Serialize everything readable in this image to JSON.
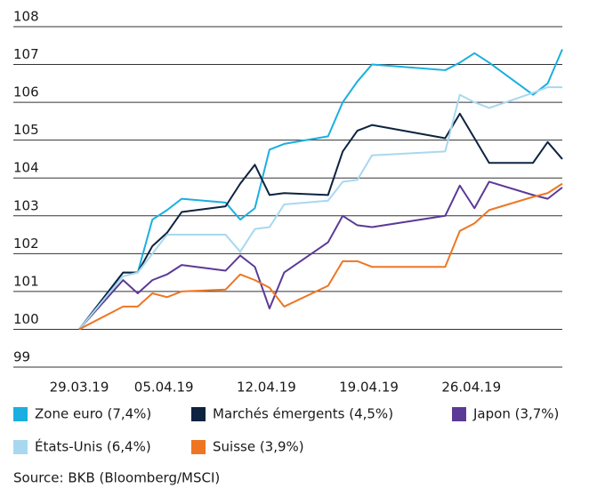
{
  "chart_data": {
    "type": "line",
    "x": [
      "29.03.19",
      "01.04.19",
      "02.04.19",
      "03.04.19",
      "04.04.19",
      "05.04.19",
      "08.04.19",
      "09.04.19",
      "10.04.19",
      "11.04.19",
      "12.04.19",
      "15.04.19",
      "16.04.19",
      "17.04.19",
      "18.04.19",
      "23.04.19",
      "24.04.19",
      "25.04.19",
      "26.04.19",
      "29.04.19",
      "30.04.19",
      "01.05.19"
    ],
    "xticks": [
      "29.03.19",
      "05.04.19",
      "12.04.19",
      "19.04.19",
      "26.04.19"
    ],
    "ylim": [
      99,
      108
    ],
    "yticks": [
      99,
      100,
      101,
      102,
      103,
      104,
      105,
      106,
      107,
      108
    ],
    "grid": true,
    "series": [
      {
        "name": "Zone euro (7,4%)",
        "color": "#1aafe0",
        "values": [
          100,
          101.5,
          101.5,
          102.9,
          103.15,
          103.45,
          103.35,
          102.9,
          103.2,
          104.75,
          104.9,
          105.1,
          106.0,
          106.55,
          107.0,
          106.85,
          107.05,
          107.3,
          107.05,
          106.2,
          106.5,
          107.4
        ]
      },
      {
        "name": "Marchés émergents (4,5%)",
        "color": "#0d2340",
        "values": [
          100,
          101.5,
          101.5,
          102.2,
          102.55,
          103.1,
          103.25,
          103.85,
          104.35,
          103.55,
          103.6,
          103.55,
          104.7,
          105.25,
          105.4,
          105.05,
          105.7,
          105.05,
          104.4,
          104.4,
          104.95,
          104.5
        ]
      },
      {
        "name": "Japon (3,7%)",
        "color": "#5b3a96",
        "values": [
          100,
          101.3,
          100.95,
          101.3,
          101.45,
          101.7,
          101.55,
          101.95,
          101.65,
          100.55,
          101.5,
          102.3,
          103.0,
          102.75,
          102.7,
          103.0,
          103.8,
          103.2,
          103.9,
          103.55,
          103.45,
          103.75
        ]
      },
      {
        "name": "États-Unis (6,4%)",
        "color": "#a8d8f0",
        "values": [
          100,
          101.4,
          101.5,
          102.0,
          102.5,
          102.5,
          102.5,
          102.05,
          102.65,
          102.7,
          103.3,
          103.4,
          103.9,
          103.95,
          104.6,
          104.7,
          106.2,
          106.0,
          105.85,
          106.25,
          106.4,
          106.4
        ]
      },
      {
        "name": "Suisse (3,9%)",
        "color": "#ee7623",
        "values": [
          100,
          100.6,
          100.6,
          100.95,
          100.85,
          101.0,
          101.05,
          101.45,
          101.3,
          101.1,
          100.6,
          101.15,
          101.8,
          101.8,
          101.65,
          101.65,
          102.6,
          102.8,
          103.15,
          103.5,
          103.6,
          103.85
        ]
      }
    ],
    "source": "Source: BKB (Bloomberg/MSCI)"
  }
}
